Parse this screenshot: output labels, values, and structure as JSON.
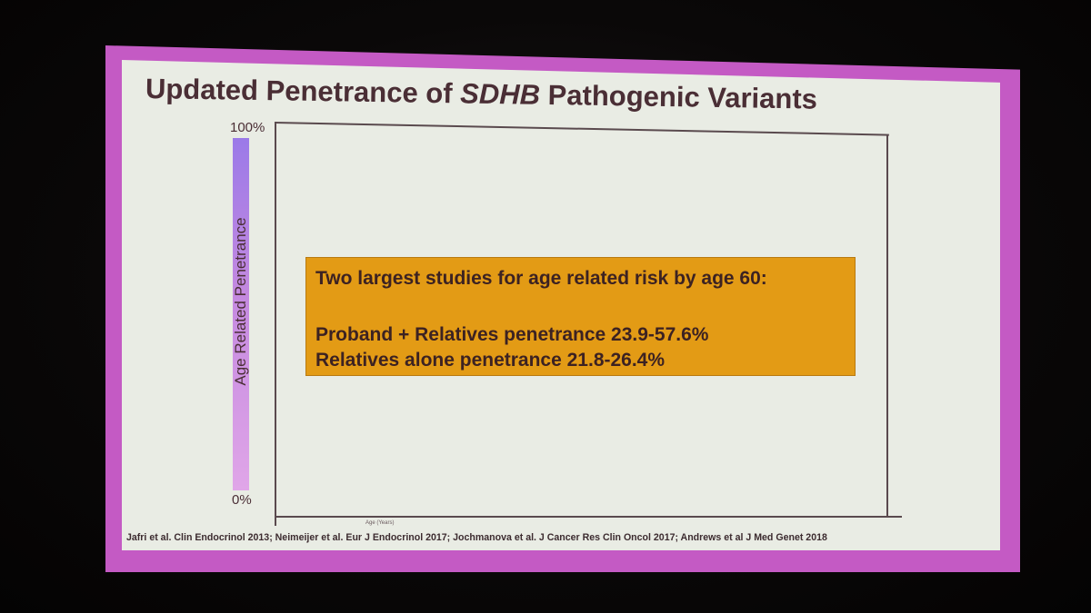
{
  "slide": {
    "title_prefix": "Updated Penetrance of ",
    "title_gene": "SDHB",
    "title_suffix": " Pathogenic Variants",
    "y_axis": {
      "label": "Age Related Penetrance",
      "top_tick": "100%",
      "bottom_tick": "0%"
    },
    "x_axis_hint": "Age (Years)",
    "callout": {
      "heading": "Two largest studies for age related risk by age 60:",
      "line1": "Proband + Relatives penetrance 23.9-57.6%",
      "line2": "Relatives alone penetrance 21.8-26.4%"
    },
    "references": "Jafri et al. Clin Endocrinol 2013; Neimeijer et al. Eur J Endocrinol 2017; Jochmanova et al. J Cancer Res Clin Oncol 2017; Andrews et al J Med Genet 2018"
  },
  "colors": {
    "frame": "#c45ac4",
    "slide_background": "#e9ece4",
    "text": "#4a2e35",
    "callout_background": "#e39b15",
    "gradient_top": "#9b7ae8",
    "gradient_bottom": "#e0a6e8"
  }
}
